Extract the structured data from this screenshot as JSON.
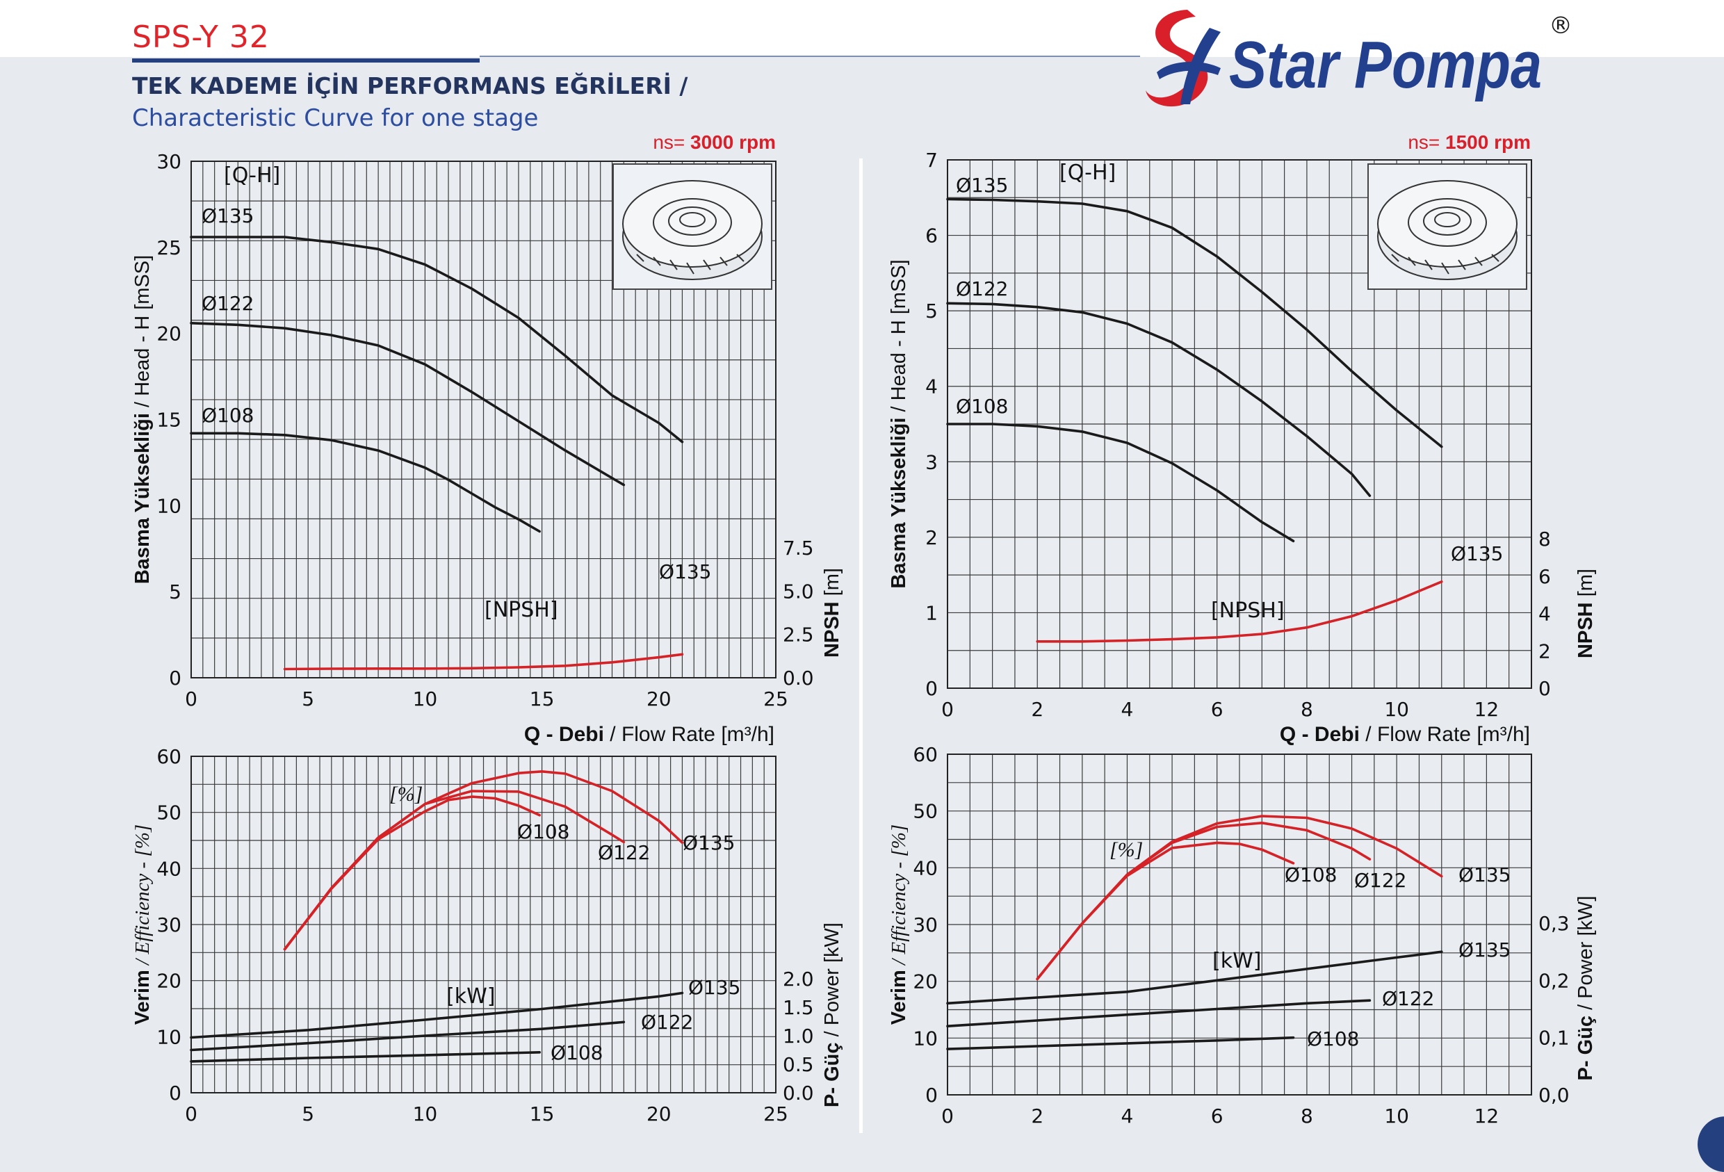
{
  "header": {
    "model": "SPS-Y 32",
    "title_tr": "TEK KADEME İÇİN PERFORMANS EĞRİLERİ  /",
    "title_en": "Characteristic Curve for one stage",
    "brand": "Star Pompa",
    "registered": "®",
    "brand_color": "#d9202a",
    "accent_color": "#23408f"
  },
  "chart_data": [
    {
      "id": "qh3000",
      "type": "line",
      "speed": "ns= 3000 rpm",
      "tag": "[Q-H]",
      "tag2": "[NPSH]",
      "xlabel_bold": "Q - Debi",
      "xlabel_rest": " / Flow Rate [m³/h]",
      "ylabel_bold": "Basma Yüksekliği",
      "ylabel_rest": " / Head - H [mSS]",
      "y2label_bold": "NPSH",
      "y2label_rest": " [m]",
      "xlim": [
        0,
        25
      ],
      "ylim": [
        0,
        30
      ],
      "y2lim": [
        0,
        7.5
      ],
      "xticks": [
        "0",
        "5",
        "10",
        "15",
        "20",
        "25"
      ],
      "yticks": [
        "0",
        "5",
        "10",
        "15",
        "20",
        "25",
        "30"
      ],
      "y2ticks": [
        "0.0",
        "2.5",
        "5.0",
        "7.5"
      ],
      "grid": true,
      "series": [
        {
          "name": "Ø135",
          "color": "#1a1a1a",
          "x": [
            0,
            2,
            4,
            6,
            8,
            10,
            12,
            14,
            16,
            18,
            20,
            21
          ],
          "y": [
            25.6,
            25.6,
            25.6,
            25.3,
            24.9,
            24.0,
            22.6,
            20.9,
            18.7,
            16.4,
            14.8,
            13.7
          ]
        },
        {
          "name": "Ø122",
          "color": "#1a1a1a",
          "x": [
            0,
            2,
            4,
            6,
            8,
            10,
            12,
            14,
            16,
            17,
            18.5
          ],
          "y": [
            20.6,
            20.5,
            20.3,
            19.9,
            19.3,
            18.2,
            16.6,
            14.9,
            13.2,
            12.4,
            11.2
          ]
        },
        {
          "name": "Ø108",
          "color": "#1a1a1a",
          "x": [
            0,
            2,
            4,
            6,
            8,
            10,
            11,
            12,
            13,
            14,
            14.9
          ],
          "y": [
            14.2,
            14.2,
            14.1,
            13.8,
            13.2,
            12.2,
            11.5,
            10.7,
            9.9,
            9.2,
            8.5
          ]
        },
        {
          "name": "Ø135",
          "color": "#d42227",
          "axis": "y2",
          "x": [
            4,
            6,
            8,
            10,
            12,
            14,
            16,
            18,
            20,
            21
          ],
          "y": [
            0.5,
            0.52,
            0.53,
            0.53,
            0.55,
            0.6,
            0.69,
            0.89,
            1.18,
            1.35
          ]
        }
      ]
    },
    {
      "id": "qh1500",
      "type": "line",
      "speed": "ns= 1500 rpm",
      "tag": "[Q-H]",
      "tag2": "[NPSH]",
      "xlabel_bold": "Q - Debi",
      "xlabel_rest": " / Flow Rate [m³/h]",
      "ylabel_bold": "Basma Yüksekliği",
      "ylabel_rest": " / Head - H [mSS]",
      "y2label_bold": "NPSH",
      "y2label_rest": " [m]",
      "xlim": [
        0,
        13
      ],
      "ylim": [
        0,
        7
      ],
      "y2lim": [
        0,
        8
      ],
      "xticks": [
        "0",
        "2",
        "4",
        "6",
        "8",
        "10",
        "12"
      ],
      "yticks": [
        "0",
        "1",
        "2",
        "3",
        "4",
        "5",
        "6",
        "7"
      ],
      "y2ticks": [
        "0",
        "2",
        "4",
        "6",
        "8"
      ],
      "grid": true,
      "series": [
        {
          "name": "Ø135",
          "color": "#1a1a1a",
          "x": [
            0,
            1,
            2,
            3,
            4,
            5,
            6,
            7,
            8,
            9,
            10,
            11
          ],
          "y": [
            6.48,
            6.47,
            6.45,
            6.42,
            6.32,
            6.1,
            5.72,
            5.25,
            4.75,
            4.2,
            3.68,
            3.2
          ]
        },
        {
          "name": "Ø122",
          "color": "#1a1a1a",
          "x": [
            0,
            1,
            2,
            3,
            4,
            5,
            6,
            7,
            8,
            9,
            9.4
          ],
          "y": [
            5.1,
            5.09,
            5.05,
            4.98,
            4.83,
            4.58,
            4.22,
            3.8,
            3.34,
            2.84,
            2.55
          ]
        },
        {
          "name": "Ø108",
          "color": "#1a1a1a",
          "x": [
            0,
            1,
            2,
            3,
            4,
            5,
            6,
            7,
            7.7
          ],
          "y": [
            3.5,
            3.5,
            3.47,
            3.4,
            3.25,
            2.98,
            2.62,
            2.2,
            1.95
          ]
        },
        {
          "name": "Ø135",
          "color": "#d42227",
          "axis": "y2",
          "x": [
            2,
            3,
            4,
            5,
            6,
            7,
            8,
            9,
            10,
            11
          ],
          "y": [
            2.5,
            2.5,
            2.55,
            2.62,
            2.72,
            2.9,
            3.25,
            3.85,
            4.7,
            5.7
          ]
        }
      ]
    },
    {
      "id": "pw3000",
      "type": "line",
      "tag": "[%]",
      "tag2": "[kW]",
      "ylabel_bold": "Verim",
      "ylabel_rest": " / Efficiency -  [%]",
      "y2label_bold": "P- Güç",
      "y2label_rest": " / Power  [kW]",
      "xlim": [
        0,
        25
      ],
      "ylim": [
        0,
        60
      ],
      "y2lim": [
        0,
        6
      ],
      "xticks": [
        "0",
        "5",
        "10",
        "15",
        "20",
        "25"
      ],
      "yticks": [
        "0",
        "10",
        "20",
        "30",
        "40",
        "50",
        "60"
      ],
      "y2ticks": [
        "0.0",
        "0.5",
        "1.0",
        "1.5",
        "2.0"
      ],
      "grid": true,
      "series": [
        {
          "name": "Ø135",
          "color": "#d42227",
          "x": [
            4,
            6,
            8,
            10,
            12,
            14,
            15,
            16,
            18,
            20,
            21
          ],
          "y": [
            25.6,
            36.5,
            45.5,
            51.5,
            55.2,
            57.0,
            57.3,
            56.9,
            53.8,
            48.5,
            44.6
          ]
        },
        {
          "name": "Ø122",
          "color": "#d42227",
          "x": [
            4,
            6,
            8,
            10,
            12,
            14,
            16,
            18,
            18.5
          ],
          "y": [
            25.6,
            36.5,
            45.5,
            51.5,
            53.8,
            53.7,
            51.0,
            46.0,
            44.7
          ]
        },
        {
          "name": "Ø108",
          "color": "#d42227",
          "x": [
            4,
            6,
            8,
            10,
            11,
            12,
            13,
            14,
            14.9
          ],
          "y": [
            25.6,
            36.4,
            45.2,
            50.2,
            52.2,
            52.8,
            52.5,
            51.2,
            49.5
          ]
        },
        {
          "name": "Ø135",
          "color": "#1a1a1a",
          "axis": "y2",
          "x": [
            0,
            5,
            10,
            15,
            20,
            21
          ],
          "y": [
            0.97,
            1.1,
            1.28,
            1.47,
            1.69,
            1.75
          ]
        },
        {
          "name": "Ø122",
          "color": "#1a1a1a",
          "axis": "y2",
          "x": [
            0,
            5,
            10,
            15,
            18.5
          ],
          "y": [
            0.75,
            0.87,
            1.0,
            1.12,
            1.24
          ]
        },
        {
          "name": "Ø108",
          "color": "#1a1a1a",
          "axis": "y2",
          "x": [
            0,
            5,
            10,
            14.9
          ],
          "y": [
            0.55,
            0.61,
            0.66,
            0.71
          ]
        }
      ]
    },
    {
      "id": "pw1500",
      "type": "line",
      "tag": "[%]",
      "tag2": "[kW]",
      "ylabel_bold": "Verim",
      "ylabel_rest": " / Efficiency -  [%]",
      "y2label_bold": "P- Güç",
      "y2label_rest": " / Power  [kW]",
      "xlim": [
        0,
        13
      ],
      "ylim": [
        0,
        60
      ],
      "y2lim": [
        0,
        0.6
      ],
      "xticks": [
        "0",
        "2",
        "4",
        "6",
        "8",
        "10",
        "12"
      ],
      "yticks": [
        "0",
        "10",
        "20",
        "30",
        "40",
        "50",
        "60"
      ],
      "y2ticks": [
        "0,0",
        "0,1",
        "0,2",
        "0,3"
      ],
      "grid": true,
      "series": [
        {
          "name": "Ø135",
          "color": "#d42227",
          "x": [
            2,
            3,
            4,
            5,
            6,
            7,
            8,
            9,
            10,
            11
          ],
          "y": [
            20.4,
            30.2,
            38.8,
            44.6,
            47.8,
            49.1,
            48.8,
            46.9,
            43.4,
            38.5
          ]
        },
        {
          "name": "Ø122",
          "color": "#d42227",
          "x": [
            2,
            3,
            4,
            5,
            6,
            7,
            8,
            9,
            9.4
          ],
          "y": [
            20.4,
            30.2,
            38.8,
            44.4,
            47.2,
            47.9,
            46.6,
            43.4,
            41.5
          ]
        },
        {
          "name": "Ø108",
          "color": "#d42227",
          "x": [
            2,
            3,
            4,
            5,
            6,
            6.5,
            7,
            7.7
          ],
          "y": [
            20.4,
            30.2,
            38.6,
            43.5,
            44.4,
            44.2,
            43.2,
            40.8
          ]
        },
        {
          "name": "Ø135",
          "color": "#1a1a1a",
          "axis": "y2",
          "x": [
            0,
            2,
            4,
            6,
            8,
            10,
            11
          ],
          "y": [
            0.16,
            0.17,
            0.18,
            0.2,
            0.22,
            0.24,
            0.25
          ]
        },
        {
          "name": "Ø122",
          "color": "#1a1a1a",
          "axis": "y2",
          "x": [
            0,
            2,
            4,
            6,
            8,
            9.4
          ],
          "y": [
            0.12,
            0.13,
            0.14,
            0.15,
            0.16,
            0.165
          ]
        },
        {
          "name": "Ø108",
          "color": "#1a1a1a",
          "axis": "y2",
          "x": [
            0,
            2,
            4,
            6,
            7.7
          ],
          "y": [
            0.08,
            0.085,
            0.09,
            0.095,
            0.1
          ]
        }
      ]
    }
  ]
}
